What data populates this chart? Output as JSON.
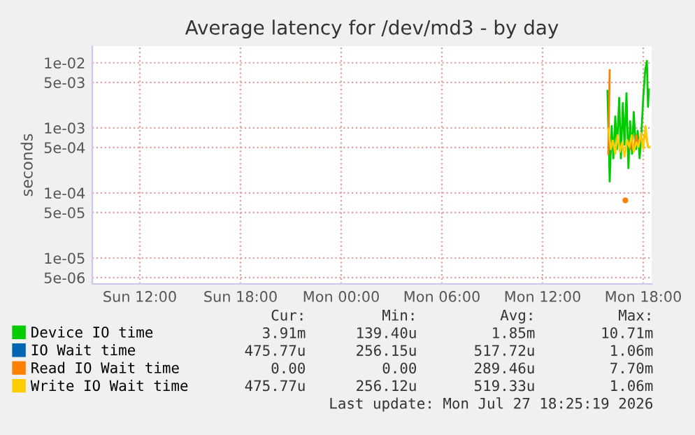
{
  "chart_data": {
    "type": "line",
    "title": "Average latency for /dev/md3 - by day",
    "ylabel": "seconds",
    "log": true,
    "grid": true,
    "legend": "bottom left",
    "xlim": [
      "2026-07-26T09:10",
      "2026-07-27T18:30"
    ],
    "xticks": [
      {
        "value": "2026-07-26T12:00",
        "label": "Sun 12:00"
      },
      {
        "value": "2026-07-26T18:00",
        "label": "Sun 18:00"
      },
      {
        "value": "2026-07-27T00:00",
        "label": "Mon 00:00"
      },
      {
        "value": "2026-07-27T06:00",
        "label": "Mon 06:00"
      },
      {
        "value": "2026-07-27T12:00",
        "label": "Mon 12:00"
      },
      {
        "value": "2026-07-27T18:00",
        "label": "Mon 18:00"
      }
    ],
    "ylim": [
      4e-06,
      0.018
    ],
    "yticks": [
      {
        "value": 0.01,
        "label": "1e-02"
      },
      {
        "value": 0.005,
        "label": "5e-03"
      },
      {
        "value": 0.001,
        "label": "1e-03"
      },
      {
        "value": 0.0005,
        "label": "5e-04"
      },
      {
        "value": 0.0001,
        "label": "1e-04"
      },
      {
        "value": 5e-05,
        "label": "5e-05"
      },
      {
        "value": 1e-05,
        "label": "1e-05"
      },
      {
        "value": 5e-06,
        "label": "5e-06"
      }
    ],
    "series": [
      {
        "name": "Device IO time",
        "color": "#00cc00",
        "x": [
          "2026-07-27T15:52",
          "2026-07-27T16:00",
          "2026-07-27T16:07",
          "2026-07-27T16:13",
          "2026-07-27T16:20",
          "2026-07-27T16:26",
          "2026-07-27T16:34",
          "2026-07-27T16:40",
          "2026-07-27T16:47",
          "2026-07-27T16:53",
          "2026-07-27T17:00",
          "2026-07-27T17:07",
          "2026-07-27T17:13",
          "2026-07-27T17:20",
          "2026-07-27T17:26",
          "2026-07-27T17:34",
          "2026-07-27T17:40",
          "2026-07-27T17:47",
          "2026-07-27T17:53",
          "2026-07-27T18:00",
          "2026-07-27T18:07",
          "2026-07-27T18:13",
          "2026-07-27T18:17",
          "2026-07-27T18:20"
        ],
        "values": [
          0.0037,
          0.00015,
          0.00107,
          0.00034,
          0.0015,
          0.00047,
          0.0029,
          0.00034,
          0.0024,
          0.00055,
          0.0034,
          0.00024,
          0.00126,
          0.0004,
          0.00175,
          0.00047,
          0.0009,
          0.00034,
          0.00077,
          0.0029,
          0.0077,
          0.0107,
          0.0021,
          0.0039
        ]
      },
      {
        "name": "IO Wait time",
        "color": "#0066b3"
      },
      {
        "name": "Read IO Wait time",
        "color": "#ff8000",
        "x": [
          "2026-07-27T15:55",
          "2026-07-27T16:00",
          "2026-07-27T16:07",
          "2026-07-27T16:50",
          "2026-07-27T16:56",
          "2026-07-27T17:04",
          "2026-07-27T17:10",
          "2026-07-27T17:13",
          "2026-07-27T17:20",
          "2026-07-27T17:26",
          "2026-07-27T17:35",
          "2026-07-27T17:43",
          "2026-07-27T17:52",
          "2026-07-27T18:00",
          "2026-07-27T18:08",
          "2026-07-27T18:17",
          "2026-07-27T18:22"
        ],
        "values": [
          0.0004,
          0.0077,
          null,
          null,
          7.7e-05,
          null,
          null,
          0.00047,
          0.00065,
          0.00043,
          0.00077,
          0.00055,
          0.0007,
          0.0006,
          0.0009,
          0.00051,
          0.00051
        ]
      },
      {
        "name": "Write IO Wait time",
        "color": "#ffcc00",
        "x": [
          "2026-07-27T15:55",
          "2026-07-27T16:04",
          "2026-07-27T16:11",
          "2026-07-27T16:20",
          "2026-07-27T16:28",
          "2026-07-27T16:37",
          "2026-07-27T16:45",
          "2026-07-27T16:53",
          "2026-07-27T17:02",
          "2026-07-27T17:10",
          "2026-07-27T17:19",
          "2026-07-27T17:26",
          "2026-07-27T17:35",
          "2026-07-27T17:43",
          "2026-07-27T17:52",
          "2026-07-27T18:00",
          "2026-07-27T18:08",
          "2026-07-27T18:17",
          "2026-07-27T18:22"
        ],
        "values": [
          0.00098,
          0.00047,
          0.00064,
          0.0004,
          0.00077,
          0.00043,
          0.0006,
          0.00036,
          0.00065,
          0.00051,
          0.00077,
          0.00043,
          0.0006,
          0.00051,
          0.00083,
          0.00047,
          0.00107,
          0.00051,
          0.00051
        ]
      }
    ],
    "annotations": [
      "Cur:",
      "Min:",
      "Avg:",
      "Max:",
      "3.91m",
      "139.40u",
      "1.85m",
      "10.71m",
      "475.77u",
      "256.15u",
      "517.72u",
      "1.06m",
      "0.00",
      "0.00",
      "289.46u",
      "7.70m",
      "475.77u",
      "256.12u",
      "519.33u",
      "1.06m",
      "Last update: Mon Jul 27 18:25:19 2026"
    ]
  }
}
